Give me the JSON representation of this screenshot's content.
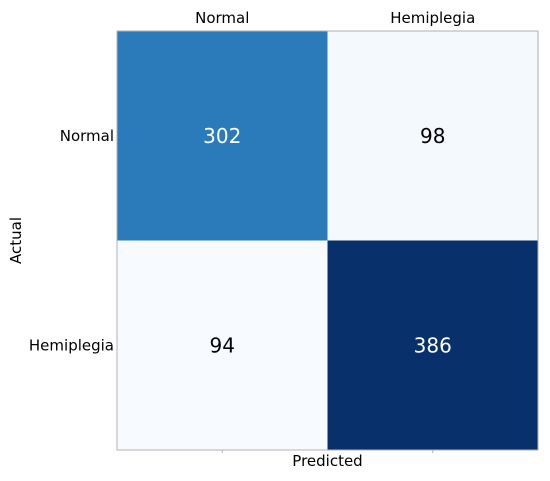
{
  "chart_data": {
    "type": "heatmap",
    "title": "",
    "xlabel": "Predicted",
    "ylabel": "Actual",
    "x_categories": [
      "Normal",
      "Hemiplegia"
    ],
    "y_categories": [
      "Normal",
      "Hemiplegia"
    ],
    "values": [
      [
        302,
        98
      ],
      [
        94,
        386
      ]
    ],
    "colormap": "Blues",
    "cell_colors": [
      [
        "#2b7bba",
        "#f4f9fe"
      ],
      [
        "#f7fbff",
        "#08306b"
      ]
    ],
    "text_colors": [
      [
        "#ffffff",
        "#000000"
      ],
      [
        "#000000",
        "#ffffff"
      ]
    ],
    "x_tick_position": "top",
    "grid": false
  }
}
